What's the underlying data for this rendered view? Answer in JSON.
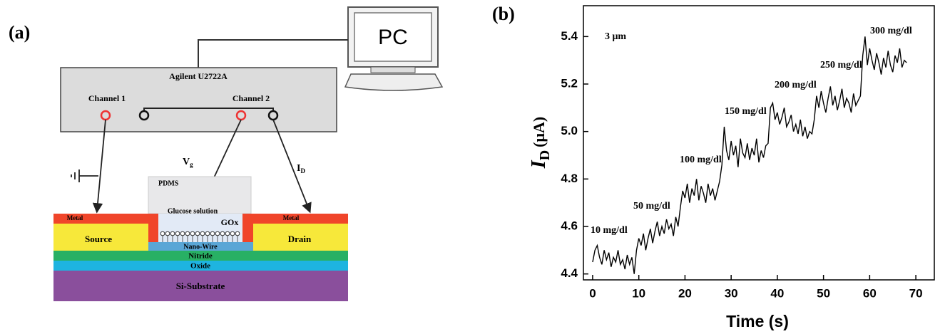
{
  "diagram": {
    "panel_label": "(a)",
    "computer": "PC",
    "instrument": "Agilent U2722A",
    "channels": [
      "Channel 1",
      "Channel 2"
    ],
    "gate_voltage": {
      "main": "V",
      "sub": "g"
    },
    "drain_current": {
      "main": "I",
      "sub": "D"
    },
    "layers": {
      "pdms": "PDMS",
      "solution": "Glucose solution",
      "enzyme": "GOx",
      "metal_left": "Metal",
      "metal_right": "Metal",
      "source": "Source",
      "drain": "Drain",
      "nanowire": "Nano-Wire",
      "nitride": "Nitride",
      "oxide": "Oxide",
      "substrate": "Si-Substrate"
    }
  },
  "chart_data": {
    "type": "line",
    "panel_label": "(b)",
    "xlabel": "Time (s)",
    "ylabel": {
      "main": "I",
      "sub": "D",
      "unit": "(μA)"
    },
    "annotations": [
      "3 μm",
      "10 mg/dl",
      "50 mg/dl",
      "100 mg/dl",
      "150 mg/dl",
      "200 mg/dl",
      "250 mg/dl",
      "300 mg/dl"
    ],
    "color": "#000000",
    "xlim": [
      -2,
      74
    ],
    "xticks": [
      0,
      10,
      20,
      30,
      40,
      50,
      60,
      70
    ],
    "ylim": [
      4.375,
      5.53
    ],
    "yticks": [
      4.4,
      4.6,
      4.8,
      {
        "value": 5,
        "label": "5.0"
      },
      5.2,
      5.4
    ],
    "x": [
      0,
      0.5,
      1,
      1.5,
      2,
      2.5,
      3,
      3.5,
      4,
      4.5,
      5,
      5.5,
      6,
      6.5,
      7,
      7.5,
      8,
      8.5,
      9,
      9.5,
      10,
      10.5,
      11,
      11.5,
      12,
      12.5,
      13,
      13.5,
      14,
      14.5,
      15,
      15.5,
      16,
      16.5,
      17,
      17.5,
      18,
      18.5,
      19,
      19.5,
      20,
      20.5,
      21,
      21.5,
      22,
      22.5,
      23,
      23.5,
      24,
      24.5,
      25,
      25.5,
      26,
      26.5,
      27,
      27.5,
      28,
      28.5,
      29,
      29.5,
      30,
      30.5,
      31,
      31.5,
      32,
      32.5,
      33,
      33.5,
      34,
      34.5,
      35,
      35.5,
      36,
      36.5,
      37,
      37.5,
      38,
      38.5,
      39,
      39.5,
      40,
      40.5,
      41,
      41.5,
      42,
      42.5,
      43,
      43.5,
      44,
      44.5,
      45,
      45.5,
      46,
      46.5,
      47,
      47.5,
      48,
      48.5,
      49,
      49.5,
      50,
      50.5,
      51,
      51.5,
      52,
      52.5,
      53,
      53.5,
      54,
      54.5,
      55,
      55.5,
      56,
      56.5,
      57,
      57.5,
      58,
      58.5,
      59,
      59.5,
      60,
      60.5,
      61,
      61.5,
      62,
      62.5,
      63,
      63.5,
      64,
      64.5,
      65,
      65.5,
      66,
      66.5,
      67,
      67.5,
      68
    ],
    "values": [
      4.45,
      4.5,
      4.52,
      4.47,
      4.44,
      4.5,
      4.46,
      4.49,
      4.43,
      4.47,
      4.45,
      4.5,
      4.44,
      4.46,
      4.42,
      4.48,
      4.44,
      4.47,
      4.4,
      4.5,
      4.55,
      4.52,
      4.57,
      4.5,
      4.55,
      4.59,
      4.53,
      4.58,
      4.62,
      4.56,
      4.6,
      4.57,
      4.63,
      4.59,
      4.61,
      4.56,
      4.64,
      4.6,
      4.68,
      4.75,
      4.72,
      4.78,
      4.7,
      4.76,
      4.73,
      4.8,
      4.71,
      4.77,
      4.74,
      4.7,
      4.78,
      4.73,
      4.76,
      4.71,
      4.75,
      4.79,
      4.86,
      5.02,
      4.92,
      4.88,
      4.96,
      4.9,
      4.94,
      4.85,
      4.97,
      4.91,
      4.89,
      4.95,
      4.88,
      4.93,
      4.9,
      4.97,
      4.87,
      4.92,
      4.89,
      4.94,
      4.95,
      5.1,
      5.12,
      5.05,
      5.08,
      5.03,
      5.06,
      5.1,
      5.02,
      5.04,
      5.07,
      5.0,
      5.03,
      4.99,
      5.05,
      4.98,
      5.02,
      4.97,
      5.0,
      4.99,
      5.05,
      5.15,
      5.1,
      5.17,
      5.12,
      5.08,
      5.14,
      5.19,
      5.11,
      5.15,
      5.09,
      5.13,
      5.18,
      5.1,
      5.14,
      5.12,
      5.08,
      5.16,
      5.11,
      5.13,
      5.15,
      5.32,
      5.4,
      5.28,
      5.35,
      5.3,
      5.26,
      5.33,
      5.29,
      5.24,
      5.31,
      5.27,
      5.34,
      5.28,
      5.25,
      5.32,
      5.29,
      5.35,
      5.27,
      5.3,
      5.29
    ]
  }
}
